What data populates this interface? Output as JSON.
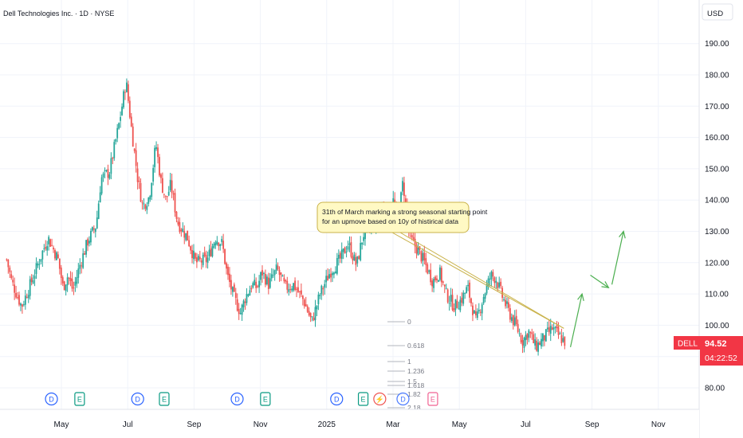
{
  "header": {
    "symbol_title": "Dell Technologies Inc. · 1D · NYSE",
    "currency": "USD"
  },
  "badge": {
    "ticker": "DELL",
    "price": "94.52",
    "countdown": "04:22:52",
    "color": "#f23645"
  },
  "annotation": {
    "line1": "31th of March marking a strong seasonal starting point",
    "line2": "for an upmove based on 10y of histirical data"
  },
  "fib_labels": [
    "0",
    "0.618",
    "1",
    "1.236",
    "1.5",
    "1.618",
    "1.82",
    "2.18"
  ],
  "event_markers": [
    {
      "letter": "D",
      "month_pos": 2.7
    },
    {
      "letter": "E",
      "month_pos": 3.55
    },
    {
      "letter": "D",
      "month_pos": 5.3
    },
    {
      "letter": "E",
      "month_pos": 6.1
    },
    {
      "letter": "D",
      "month_pos": 8.3
    },
    {
      "letter": "E",
      "month_pos": 9.15
    },
    {
      "letter": "D",
      "month_pos": 11.3
    },
    {
      "letter": "E",
      "month_pos": 12.1
    },
    {
      "letter": "⚡",
      "month_pos": 12.6
    },
    {
      "letter": "D",
      "month_pos": 13.3
    },
    {
      "letter": "E",
      "month_pos": 14.2
    }
  ],
  "colors": {
    "up": "#26a69a",
    "down": "#ef5350",
    "grid": "#f0f3fa",
    "axis_text": "#131722",
    "arrow": "#4caf50",
    "callout_bg": "#fff9c4",
    "callout_border": "#c9b24a",
    "fib_line": "#b2b5be",
    "event_d": "#2962ff",
    "event_e": "#089981",
    "event_future_e": "#f06292"
  },
  "chart_data": {
    "type": "candlestick",
    "title": "Dell Technologies Inc. · 1D · NYSE",
    "ylim": [
      72,
      200
    ],
    "y_ticks": [
      80,
      90,
      100,
      110,
      120,
      130,
      140,
      150,
      160,
      170,
      180,
      190
    ],
    "y_tick_labels": [
      "80.00",
      "90.00",
      "100.00",
      "110.00",
      "120.00",
      "130.00",
      "140.00",
      "150.00",
      "160.00",
      "170.00",
      "180.00",
      "190.00"
    ],
    "x_ticks": [
      {
        "label": "May",
        "pos": 3
      },
      {
        "label": "Jul",
        "pos": 5
      },
      {
        "label": "Sep",
        "pos": 7
      },
      {
        "label": "Nov",
        "pos": 9
      },
      {
        "label": "2025",
        "pos": 11
      },
      {
        "label": "Mar",
        "pos": 13
      },
      {
        "label": "May",
        "pos": 15
      },
      {
        "label": "Jul",
        "pos": 17
      },
      {
        "label": "Sep",
        "pos": 19
      },
      {
        "label": "Nov",
        "pos": 21
      }
    ],
    "x_range": [
      1.35,
      23.4
    ],
    "price_path": [
      [
        1.35,
        121
      ],
      [
        1.5,
        114
      ],
      [
        1.8,
        106
      ],
      [
        2.1,
        114
      ],
      [
        2.45,
        124
      ],
      [
        2.6,
        128
      ],
      [
        2.9,
        121
      ],
      [
        3.05,
        112
      ],
      [
        3.2,
        116
      ],
      [
        3.35,
        111
      ],
      [
        3.55,
        119
      ],
      [
        3.8,
        127
      ],
      [
        4.05,
        132
      ],
      [
        4.2,
        147
      ],
      [
        4.45,
        149
      ],
      [
        4.75,
        165
      ],
      [
        4.95,
        178
      ],
      [
        5.1,
        164
      ],
      [
        5.3,
        147
      ],
      [
        5.45,
        138
      ],
      [
        5.65,
        141
      ],
      [
        5.85,
        158
      ],
      [
        6.0,
        146
      ],
      [
        6.15,
        140
      ],
      [
        6.3,
        145
      ],
      [
        6.5,
        133
      ],
      [
        6.8,
        128
      ],
      [
        7.05,
        120
      ],
      [
        7.4,
        121
      ],
      [
        7.65,
        128
      ],
      [
        7.85,
        126
      ],
      [
        8.0,
        116
      ],
      [
        8.2,
        109
      ],
      [
        8.4,
        104
      ],
      [
        8.55,
        109
      ],
      [
        8.75,
        113
      ],
      [
        8.9,
        112
      ],
      [
        9.05,
        117
      ],
      [
        9.25,
        113
      ],
      [
        9.5,
        118
      ],
      [
        9.75,
        112
      ],
      [
        10.0,
        113
      ],
      [
        10.3,
        108
      ],
      [
        10.55,
        101
      ],
      [
        10.8,
        110
      ],
      [
        11.1,
        117
      ],
      [
        11.4,
        121
      ],
      [
        11.65,
        126
      ],
      [
        11.9,
        119
      ],
      [
        12.1,
        129
      ],
      [
        12.4,
        132
      ],
      [
        12.65,
        138
      ],
      [
        12.8,
        136
      ],
      [
        13.0,
        140
      ],
      [
        13.15,
        133
      ],
      [
        13.3,
        146
      ],
      [
        13.5,
        128
      ],
      [
        13.75,
        124
      ],
      [
        13.95,
        120
      ],
      [
        14.2,
        114
      ],
      [
        14.4,
        117
      ],
      [
        14.6,
        110
      ],
      [
        14.85,
        106
      ],
      [
        15.05,
        108
      ],
      [
        15.25,
        112
      ],
      [
        15.5,
        101
      ],
      [
        15.75,
        110
      ],
      [
        15.95,
        116
      ],
      [
        16.1,
        115
      ],
      [
        16.3,
        109
      ],
      [
        16.5,
        104
      ],
      [
        16.7,
        100
      ],
      [
        16.9,
        95
      ],
      [
        17.1,
        98
      ],
      [
        17.3,
        93
      ],
      [
        17.55,
        96
      ],
      [
        17.8,
        99
      ],
      [
        18.05,
        96
      ],
      [
        18.2,
        94.52
      ]
    ],
    "last_price": 94.52,
    "projection_arrows": [
      [
        [
          18.35,
          93
        ],
        [
          18.7,
          110
        ]
      ],
      [
        [
          18.95,
          116
        ],
        [
          19.5,
          112
        ]
      ],
      [
        [
          19.6,
          113
        ],
        [
          19.95,
          130
        ]
      ]
    ]
  }
}
